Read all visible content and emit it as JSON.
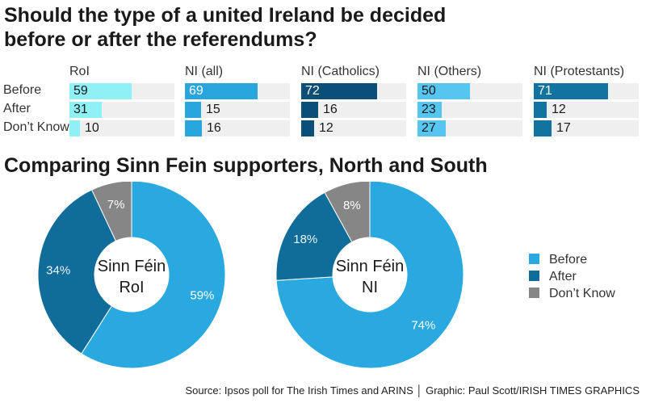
{
  "title": "Should the type of a united Ireland be decided before or after the referendums?",
  "subtitle": "Comparing Sinn Fein supporters, North and South",
  "source": "Source: Ipsos poll for The Irish Times and ARINS │ Graphic: Paul Scott/IRISH TIMES GRAPHICS",
  "colors": {
    "Before": "#29a9df",
    "After": "#106c99",
    "Don't Know": "#868686",
    "track": "#efefef"
  },
  "chart_data": [
    {
      "type": "bar",
      "orientation": "horizontal",
      "categories": [
        "Before",
        "After",
        "Don’t Know"
      ],
      "series": [
        {
          "name": "RoI",
          "values": [
            59,
            31,
            10
          ],
          "color": "#8ff0f6"
        },
        {
          "name": "NI (all)",
          "values": [
            69,
            15,
            16
          ],
          "color": "#2aa6de"
        },
        {
          "name": "NI (Catholics)",
          "values": [
            72,
            16,
            12
          ],
          "color": "#0b4e78"
        },
        {
          "name": "NI (Others)",
          "values": [
            50,
            23,
            27
          ],
          "color": "#56c5f1"
        },
        {
          "name": "NI (Protestants)",
          "values": [
            71,
            12,
            17
          ],
          "color": "#11739f"
        }
      ],
      "xlim": [
        0,
        100
      ],
      "labels_inside_when_fit": true
    },
    {
      "type": "pie",
      "donut": true,
      "center_label": [
        "Sinn Féin",
        "RoI"
      ],
      "slices": [
        {
          "label": "Before",
          "value": 59,
          "display": "59%"
        },
        {
          "label": "After",
          "value": 34,
          "display": "34%"
        },
        {
          "label": "Don’t Know",
          "value": 7,
          "display": "7%"
        }
      ]
    },
    {
      "type": "pie",
      "donut": true,
      "center_label": [
        "Sinn Féin",
        "NI"
      ],
      "slices": [
        {
          "label": "Before",
          "value": 74,
          "display": "74%"
        },
        {
          "label": "After",
          "value": 18,
          "display": "18%"
        },
        {
          "label": "Don’t Know",
          "value": 8,
          "display": "8%"
        }
      ]
    }
  ],
  "legend": {
    "placement": "right",
    "items": [
      "Before",
      "After",
      "Don’t Know"
    ]
  }
}
